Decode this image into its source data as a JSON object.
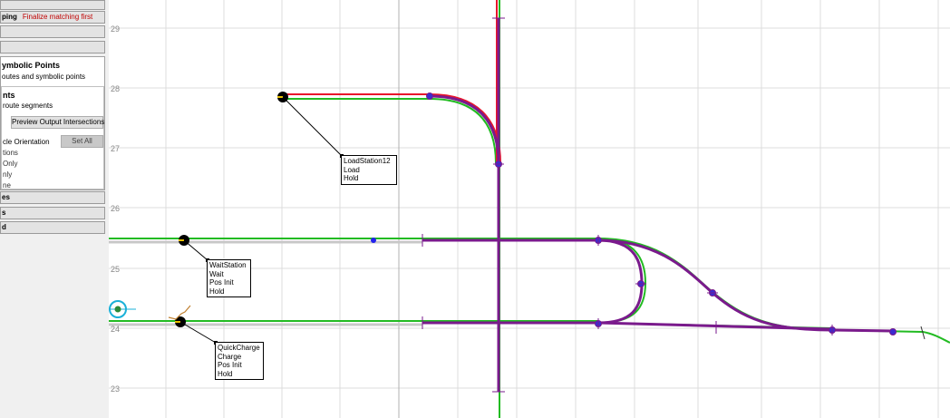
{
  "panel": {
    "bars": [
      {
        "label": "ping",
        "warning": "Finalize matching first"
      },
      {
        "label": ""
      },
      {
        "label": ""
      }
    ],
    "section": {
      "title": "ymbolic Points",
      "subtitle": "outes and symbolic points"
    },
    "subsection": {
      "title": "nts",
      "subtitle": "route segments",
      "preview_button": "Preview Output Intersections",
      "orientation_label": "cle Orientation",
      "set_all_button": "Set All",
      "options": [
        "tions",
        "Only",
        "nly",
        "ne"
      ]
    },
    "lower_bars": [
      {
        "label": "es"
      },
      {
        "label": "s"
      },
      {
        "label": "d"
      }
    ]
  },
  "map": {
    "y_axis_labels": [
      "29",
      "28",
      "27",
      "26",
      "25",
      "24",
      "23"
    ],
    "stations": [
      {
        "name": "LoadStation12",
        "action": "Load",
        "mode": "Hold"
      },
      {
        "name": "WaitStation",
        "action": "Wait",
        "init": "Pos Init",
        "mode": "Hold"
      },
      {
        "name": "QuickCharge",
        "action": "Charge",
        "init": "Pos Init",
        "mode": "Hold"
      }
    ]
  },
  "colors": {
    "track_green": "#22bb22",
    "track_red": "#e8152b",
    "route_purple": "#7a1a8c",
    "node_blue": "#2222ee",
    "grid": "#dcdcdc",
    "cyan_marker": "#1ab0d8"
  }
}
